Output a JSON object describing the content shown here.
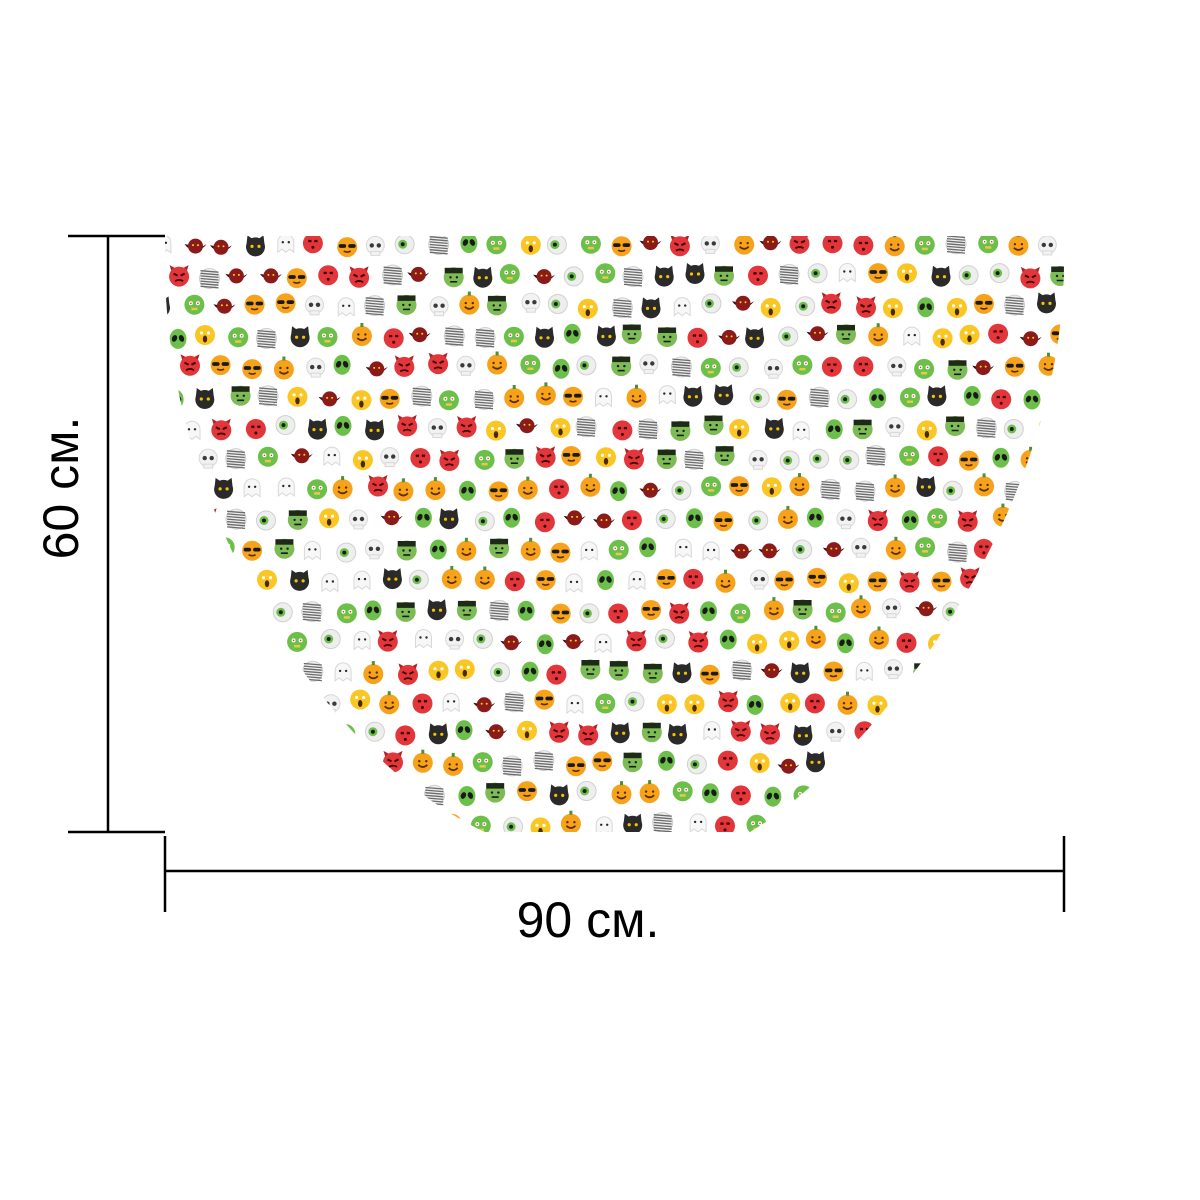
{
  "dimensions": {
    "height_label": "60 см.",
    "width_label": "90 см."
  },
  "product": {
    "shape": "half-oval mat",
    "pattern": "halloween-emoji",
    "emoji_kinds": [
      "pumpkin-smile-icon",
      "sunglasses-face-icon",
      "alien-icon",
      "devil-icon",
      "black-cat-icon",
      "skull-icon",
      "mummy-icon",
      "zombie-icon",
      "ghost-icon",
      "vampire-bat-icon",
      "screaming-face-icon",
      "angry-red-face-icon",
      "eyeball-icon",
      "frankenstein-icon"
    ]
  },
  "colors": {
    "line": "#000000",
    "background": "#ffffff",
    "pumpkin": "#f7a21b",
    "alien": "#6cc04a",
    "red": "#e2363b",
    "black": "#2a2a2a",
    "white": "#f2f2f2",
    "gray": "#cfcfcf",
    "green_dark": "#4d8f3a"
  }
}
